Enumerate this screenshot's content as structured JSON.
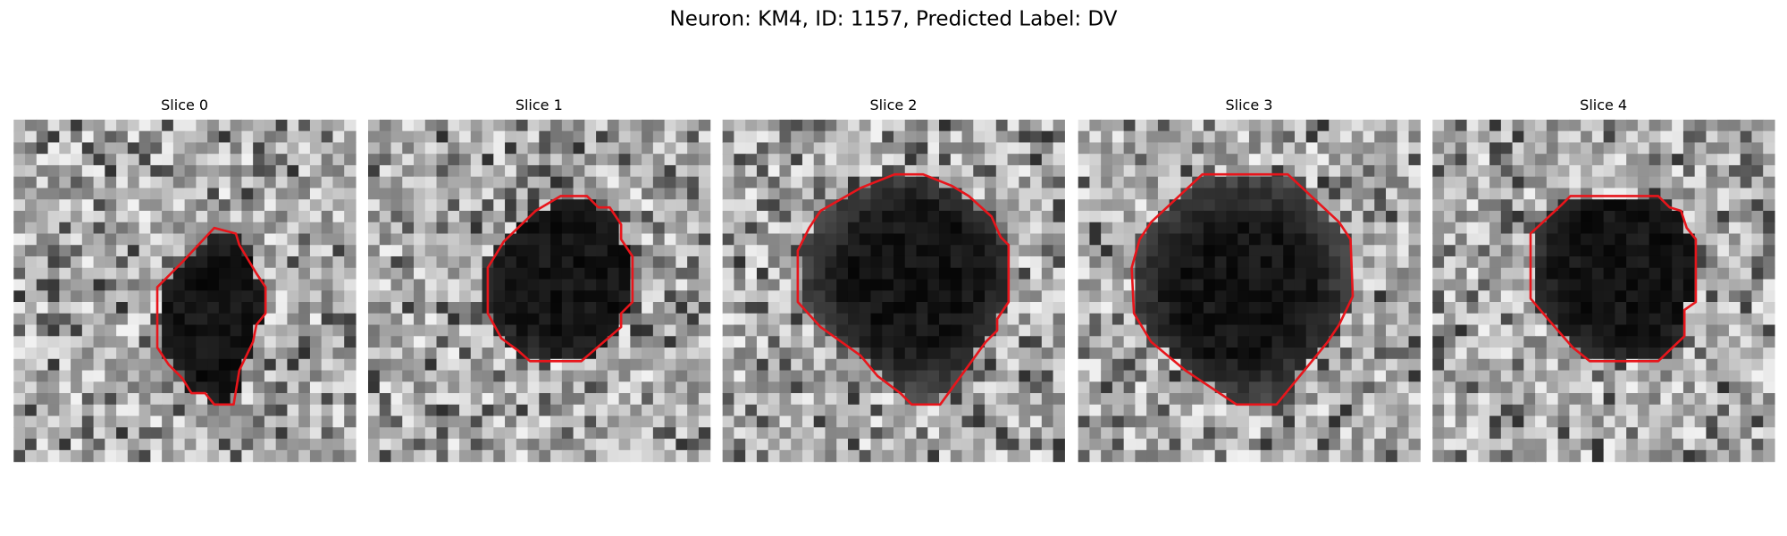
{
  "title": "Neuron: KM4, ID: 1157, Predicted Label: DV",
  "panels": [
    {
      "title": "Slice 0"
    },
    {
      "title": "Slice 1"
    },
    {
      "title": "Slice 2"
    },
    {
      "title": "Slice 3"
    },
    {
      "title": "Slice 4"
    }
  ]
}
